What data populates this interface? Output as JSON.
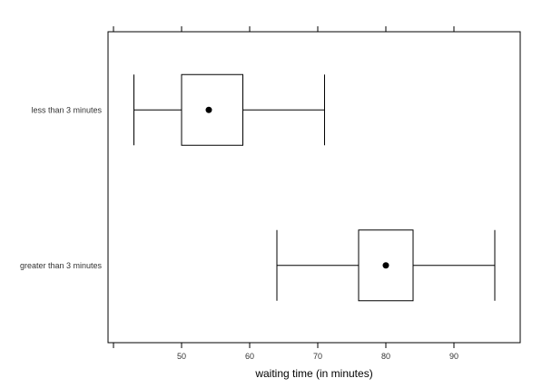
{
  "chart_data": {
    "type": "box",
    "orientation": "horizontal",
    "categories": [
      "less than 3 minutes",
      "greater than 3 minutes"
    ],
    "boxes": [
      {
        "category": "less than 3 minutes",
        "whisker_low": 43,
        "q1": 50,
        "median": 54,
        "q3": 59,
        "whisker_high": 71
      },
      {
        "category": "greater than 3 minutes",
        "whisker_low": 64,
        "q1": 76,
        "median": 80,
        "q3": 84,
        "whisker_high": 96
      }
    ],
    "xlabel": "waiting time (in minutes)",
    "ylabel": "",
    "xlim": [
      40,
      100
    ],
    "xticks": [
      50,
      60,
      70,
      80,
      90
    ],
    "grid": false,
    "colors": {
      "box": "#000000",
      "median_dot": "#000000"
    }
  }
}
